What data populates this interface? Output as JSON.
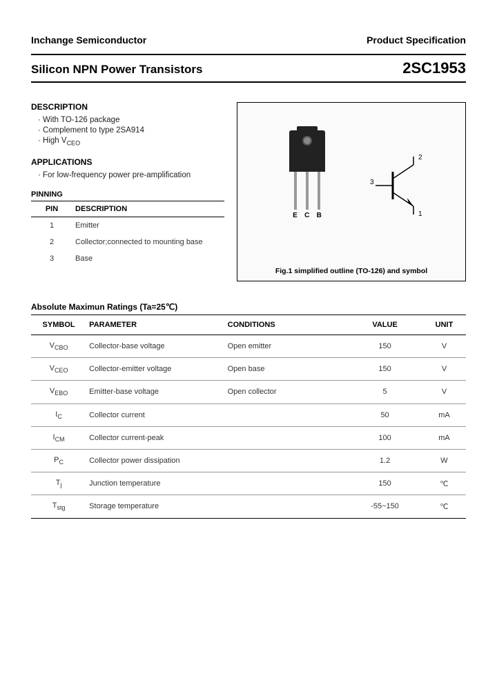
{
  "header": {
    "company": "Inchange Semiconductor",
    "doctype": "Product Specification"
  },
  "title": {
    "left": "Silicon NPN Power Transistors",
    "right": "2SC1953"
  },
  "description": {
    "heading": "DESCRIPTION",
    "items": [
      "With TO-126 package",
      "Complement to type 2SA914",
      "High V"
    ],
    "high_sub": "CEO"
  },
  "applications": {
    "heading": "APPLICATIONS",
    "items": [
      "For low-frequency power pre-amplification"
    ]
  },
  "pinning": {
    "heading": "PINNING",
    "cols": [
      "PIN",
      "DESCRIPTION"
    ],
    "rows": [
      {
        "pin": "1",
        "desc": "Emitter"
      },
      {
        "pin": "2",
        "desc": "Collector;connected to mounting base"
      },
      {
        "pin": "3",
        "desc": "Base"
      }
    ]
  },
  "figure": {
    "caption": "Fig.1 simplified outline (TO-126) and symbol",
    "lead_labels": [
      "E",
      "C",
      "B"
    ],
    "symbol_pins": {
      "c": "2",
      "b": "3",
      "e": "1"
    }
  },
  "ratings": {
    "heading": "Absolute Maximun Ratings (Ta=25℃)",
    "cols": [
      "SYMBOL",
      "PARAMETER",
      "CONDITIONS",
      "VALUE",
      "UNIT"
    ],
    "rows": [
      {
        "sym": "V",
        "sub": "CBO",
        "param": "Collector-base voltage",
        "cond": "Open emitter",
        "val": "150",
        "unit": "V"
      },
      {
        "sym": "V",
        "sub": "CEO",
        "param": "Collector-emitter voltage",
        "cond": "Open base",
        "val": "150",
        "unit": "V"
      },
      {
        "sym": "V",
        "sub": "EBO",
        "param": "Emitter-base voltage",
        "cond": "Open collector",
        "val": "5",
        "unit": "V"
      },
      {
        "sym": "I",
        "sub": "C",
        "param": "Collector current",
        "cond": "",
        "val": "50",
        "unit": "mA"
      },
      {
        "sym": "I",
        "sub": "CM",
        "param": "Collector current-peak",
        "cond": "",
        "val": "100",
        "unit": "mA"
      },
      {
        "sym": "P",
        "sub": "C",
        "param": "Collector power dissipation",
        "cond": "",
        "val": "1.2",
        "unit": "W"
      },
      {
        "sym": "T",
        "sub": "j",
        "param": "Junction temperature",
        "cond": "",
        "val": "150",
        "unit": "℃"
      },
      {
        "sym": "T",
        "sub": "stg",
        "param": "Storage temperature",
        "cond": "",
        "val": "-55~150",
        "unit": "℃"
      }
    ]
  }
}
